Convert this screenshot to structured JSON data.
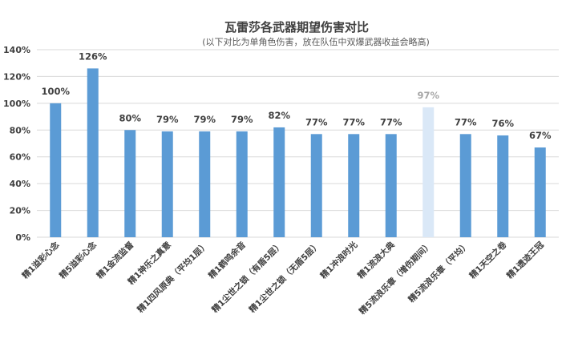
{
  "chart_data": {
    "type": "bar",
    "title": "瓦雷莎各武器期望伤害对比",
    "subtitle": "(以下对比为单角色伤害，放在队伍中双爆武器收益会略高)",
    "categories": [
      "精1溢彩心念",
      "精5溢彩心念",
      "精1金流监督",
      "精1神乐之真意",
      "精1四风原典（平均1层）",
      "精1鹤鸣余音",
      "精1尘世之锁（有盾5层）",
      "精1尘世之锁（无盾5层）",
      "精1冲浪时光",
      "精1流浪大典",
      "精5流浪乐章（增伤期间）",
      "精5流浪乐章（平均）",
      "精1天空之卷",
      "精1遗迹王冠"
    ],
    "values": [
      100,
      126,
      80,
      79,
      79,
      79,
      82,
      77,
      77,
      77,
      97,
      77,
      76,
      67
    ],
    "data_labels": [
      "100%",
      "126%",
      "80%",
      "79%",
      "79%",
      "79%",
      "82%",
      "77%",
      "77%",
      "77%",
      "97%",
      "77%",
      "76%",
      "67%"
    ],
    "ylim": [
      0,
      140
    ],
    "yticks": [
      "0%",
      "20%",
      "40%",
      "60%",
      "80%",
      "100%",
      "120%",
      "140%"
    ],
    "xlabel": "",
    "ylabel": "",
    "grid": true,
    "legend": "none",
    "colors": {
      "bar": "#5b9bd5",
      "bar_highlight": "#dae8f7",
      "label": "#404040",
      "label_highlight": "#a6a6a6"
    },
    "highlight_index": 10
  }
}
